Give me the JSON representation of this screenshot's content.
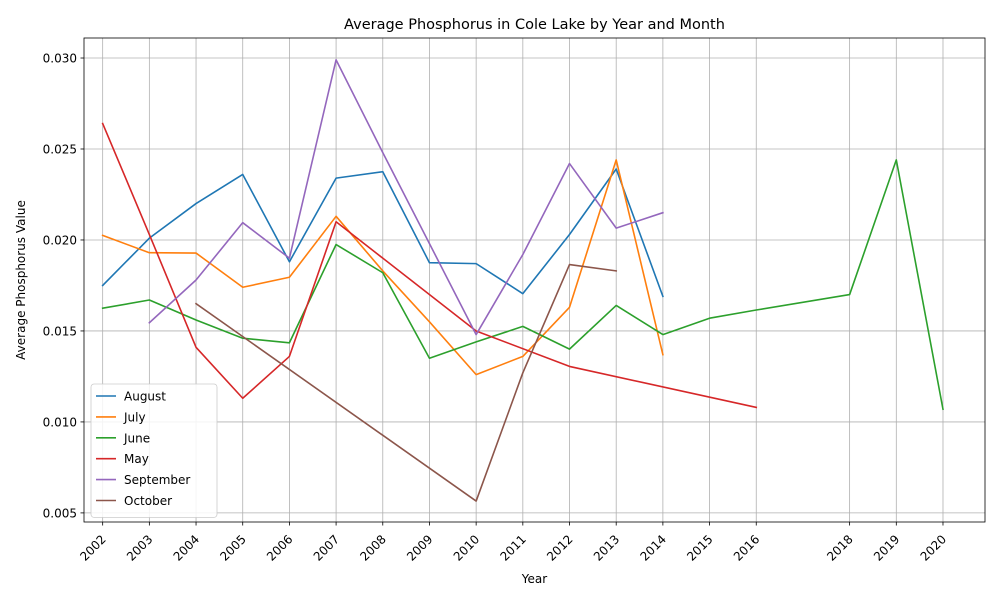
{
  "chart_data": {
    "type": "line",
    "title": "Average Phosphorus in Cole Lake by Year and Month",
    "xlabel": "Year",
    "ylabel": "Average Phosphorus Value",
    "xlim": [
      2001.6,
      2020.9
    ],
    "ylim": [
      0.0045,
      0.0311
    ],
    "yticks": [
      0.005,
      0.01,
      0.015,
      0.02,
      0.025,
      0.03
    ],
    "ytick_labels": [
      "0.005",
      "0.010",
      "0.015",
      "0.020",
      "0.025",
      "0.030"
    ],
    "xticks": [
      2002,
      2003,
      2004,
      2005,
      2006,
      2007,
      2008,
      2009,
      2010,
      2011,
      2012,
      2013,
      2014,
      2015,
      2016,
      2018,
      2019,
      2020
    ],
    "xtick_labels": [
      "2002",
      "2003",
      "2004",
      "2005",
      "2006",
      "2007",
      "2008",
      "2009",
      "2010",
      "2011",
      "2012",
      "2013",
      "2014",
      "2015",
      "2016",
      "2018",
      "2019",
      "2020"
    ],
    "grid": true,
    "legend_position": "lower-left",
    "series": [
      {
        "name": "August",
        "color": "#1f77b4",
        "points": [
          [
            2002,
            0.0175
          ],
          [
            2003,
            0.0201
          ],
          [
            2004,
            0.022
          ],
          [
            2005,
            0.0236
          ],
          [
            2006,
            0.0188
          ],
          [
            2007,
            0.0234
          ],
          [
            2008,
            0.02375
          ],
          [
            2009,
            0.01875
          ],
          [
            2010,
            0.0187
          ],
          [
            2011,
            0.01705
          ],
          [
            2012,
            0.0203
          ],
          [
            2013,
            0.0239
          ],
          [
            2014,
            0.0169
          ]
        ]
      },
      {
        "name": "July",
        "color": "#ff7f0e",
        "points": [
          [
            2002,
            0.02025
          ],
          [
            2003,
            0.0193
          ],
          [
            2004,
            0.01928
          ],
          [
            2005,
            0.0174
          ],
          [
            2006,
            0.01795
          ],
          [
            2007,
            0.0213
          ],
          [
            2008,
            0.0183
          ],
          [
            2009,
            0.0155
          ],
          [
            2010,
            0.0126
          ],
          [
            2011,
            0.0136
          ],
          [
            2012,
            0.0163
          ],
          [
            2013,
            0.0244
          ],
          [
            2014,
            0.0137
          ]
        ]
      },
      {
        "name": "June",
        "color": "#2ca02c",
        "points": [
          [
            2002,
            0.01625
          ],
          [
            2003,
            0.0167
          ],
          [
            2004,
            0.0156
          ],
          [
            2005,
            0.0146
          ],
          [
            2006,
            0.01435
          ],
          [
            2007,
            0.01975
          ],
          [
            2008,
            0.0182
          ],
          [
            2009,
            0.0135
          ],
          [
            2010,
            0.0144
          ],
          [
            2011,
            0.01525
          ],
          [
            2012,
            0.014
          ],
          [
            2013,
            0.0164
          ],
          [
            2014,
            0.0148
          ],
          [
            2015,
            0.0157
          ],
          [
            2016,
            0.01615
          ],
          [
            2018,
            0.017
          ],
          [
            2019,
            0.0244
          ],
          [
            2020,
            0.0107
          ]
        ]
      },
      {
        "name": "May",
        "color": "#d62728",
        "points": [
          [
            2002,
            0.0264
          ],
          [
            2003,
            0.0203
          ],
          [
            2004,
            0.0141
          ],
          [
            2005,
            0.0113
          ],
          [
            2006,
            0.0136
          ],
          [
            2007,
            0.021
          ],
          [
            2010,
            0.015
          ],
          [
            2012,
            0.01305
          ],
          [
            2016,
            0.0108
          ]
        ]
      },
      {
        "name": "September",
        "color": "#9467bd",
        "points": [
          [
            2003,
            0.01545
          ],
          [
            2004,
            0.0178
          ],
          [
            2005,
            0.02095
          ],
          [
            2006,
            0.019
          ],
          [
            2007,
            0.0299
          ],
          [
            2008,
            0.0248
          ],
          [
            2009,
            0.0198
          ],
          [
            2010,
            0.0148
          ],
          [
            2011,
            0.0192
          ],
          [
            2012,
            0.0242
          ],
          [
            2013,
            0.02065
          ],
          [
            2014,
            0.0215
          ]
        ]
      },
      {
        "name": "October",
        "color": "#8c564b",
        "points": [
          [
            2004,
            0.0165
          ],
          [
            2010,
            0.00565
          ],
          [
            2011,
            0.0127
          ],
          [
            2012,
            0.01865
          ],
          [
            2013,
            0.0183
          ]
        ]
      }
    ]
  }
}
